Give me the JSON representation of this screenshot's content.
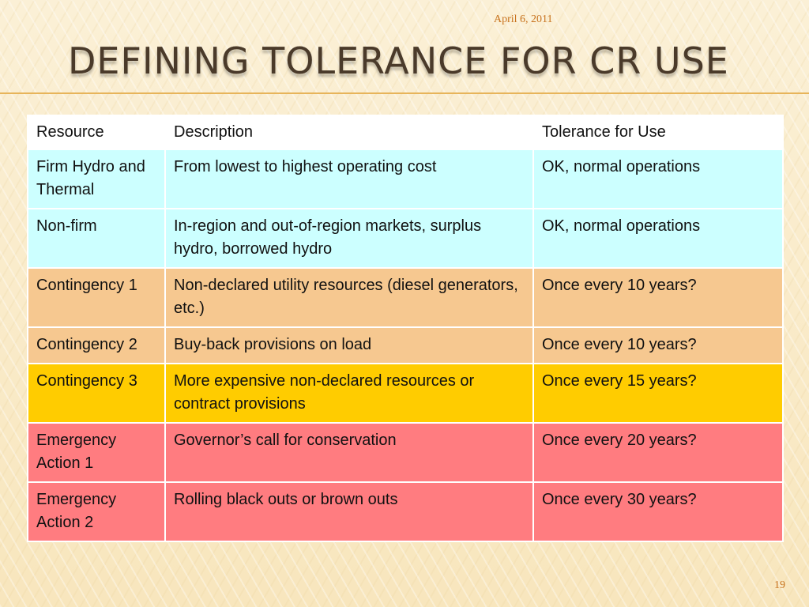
{
  "slide": {
    "date": "April 6, 2011",
    "title": "DEFINING TOLERANCE FOR CR USE",
    "page_number": "19"
  },
  "table": {
    "headers": [
      "Resource",
      "Description",
      "Tolerance for Use"
    ],
    "rows": [
      {
        "resource": "Firm Hydro and Thermal",
        "description": "From lowest to highest operating cost",
        "tolerance": "OK, normal operations",
        "color": "#ccffff"
      },
      {
        "resource": "Non-firm",
        "description": "In-region and out-of-region markets, surplus hydro, borrowed hydro",
        "tolerance": "OK, normal operations",
        "color": "#ccffff"
      },
      {
        "resource": "Contingency 1",
        "description": "Non-declared utility resources (diesel generators, etc.)",
        "tolerance": "Once every 10 years?",
        "color": "#f6c890"
      },
      {
        "resource": "Contingency 2",
        "description": "Buy-back provisions on load",
        "tolerance": "Once every 10 years?",
        "color": "#f6c890"
      },
      {
        "resource": "Contingency 3",
        "description": "More expensive non-declared resources or contract provisions",
        "tolerance": "Once every 15 years?",
        "color": "#ffcc00"
      },
      {
        "resource": "Emergency Action 1",
        "description": "Governor’s call for conservation",
        "tolerance": "Once every 20 years?",
        "color": "#ff7c80"
      },
      {
        "resource": "Emergency Action 2",
        "description": "Rolling black outs or brown outs",
        "tolerance": "Once every 30 years?",
        "color": "#ff7c80"
      }
    ]
  }
}
